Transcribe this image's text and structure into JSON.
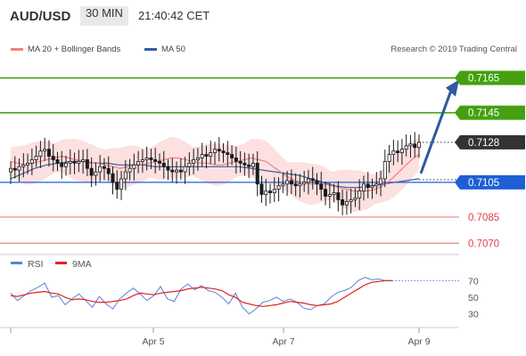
{
  "header": {
    "symbol": "AUD/USD",
    "interval": "30 MIN",
    "time": "21:40:42 CET"
  },
  "legend": [
    {
      "label": "MA 20 + Bollinger Bands",
      "color": "#f08080"
    },
    {
      "label": "MA 50",
      "color": "#3060a0"
    }
  ],
  "copyright": "Research © 2019 Trading Central",
  "rsi_legend": [
    {
      "label": "RSI",
      "color": "#5b7fd6"
    },
    {
      "label": "9MA",
      "color": "#e02020"
    }
  ],
  "colors": {
    "resistance": "#44a010",
    "support": "#f08080",
    "pivot": "#1e5fd6",
    "current": "#333333",
    "candle_up": "#1a1a1a",
    "candle_down": "#1a1a1a",
    "band_fill": "#fde0e0",
    "arrow": "#2d5aa0"
  },
  "chart_data": [
    {
      "type": "candlestick",
      "title": "AUD/USD",
      "x_labels": [
        "Apr 5",
        "Apr 7",
        "Apr 9"
      ],
      "levels": [
        {
          "value": "0.7165",
          "kind": "resistance"
        },
        {
          "value": "0.7145",
          "kind": "resistance"
        },
        {
          "value": "0.7128",
          "kind": "current"
        },
        {
          "value": "0.7105",
          "kind": "pivot"
        },
        {
          "value": "0.7085",
          "kind": "support"
        },
        {
          "value": "0.7070",
          "kind": "support"
        }
      ],
      "ylim": [
        0.7064,
        0.7175
      ],
      "close_series": [
        0.7113,
        0.7112,
        0.7114,
        0.7115,
        0.7116,
        0.7118,
        0.712,
        0.7123,
        0.7124,
        0.712,
        0.7118,
        0.7116,
        0.7114,
        0.7116,
        0.7117,
        0.7116,
        0.7117,
        0.7118,
        0.7113,
        0.7109,
        0.7111,
        0.7114,
        0.7113,
        0.711,
        0.7105,
        0.7101,
        0.7107,
        0.7111,
        0.7113,
        0.7115,
        0.7117,
        0.7118,
        0.7119,
        0.7118,
        0.7117,
        0.7116,
        0.7114,
        0.7112,
        0.7111,
        0.7112,
        0.7111,
        0.7114,
        0.7116,
        0.7118,
        0.7119,
        0.7121,
        0.712,
        0.7122,
        0.7124,
        0.7123,
        0.7122,
        0.7121,
        0.7119,
        0.7117,
        0.7116,
        0.7115,
        0.7114,
        0.7116,
        0.7104,
        0.7098,
        0.71,
        0.7099,
        0.7101,
        0.7103,
        0.7104,
        0.7106,
        0.7104,
        0.7103,
        0.7104,
        0.7105,
        0.7107,
        0.7106,
        0.7104,
        0.7101,
        0.7097,
        0.7098,
        0.7099,
        0.7095,
        0.7092,
        0.7094,
        0.7095,
        0.7096,
        0.71,
        0.7104,
        0.7102,
        0.7103,
        0.7104,
        0.7107,
        0.7117,
        0.7121,
        0.7123,
        0.7122,
        0.7124,
        0.7126,
        0.7127,
        0.7125,
        0.7128
      ],
      "ma20": [
        0.7117,
        0.7116,
        0.7115,
        0.7116,
        0.7117,
        0.7118,
        0.7119,
        0.712,
        0.7119,
        0.7118,
        0.7117,
        0.7116,
        0.7116,
        0.7115,
        0.7114,
        0.7113,
        0.7114,
        0.7115,
        0.7115,
        0.7116,
        0.7117,
        0.7118,
        0.7119,
        0.7119,
        0.7118,
        0.7117,
        0.7116,
        0.7116,
        0.7115,
        0.7115,
        0.7116,
        0.7117,
        0.7118,
        0.7119,
        0.7118,
        0.7117,
        0.7114,
        0.7111,
        0.7108,
        0.7106,
        0.7105,
        0.7104,
        0.7104,
        0.7104,
        0.7103,
        0.7102,
        0.7101,
        0.71,
        0.71,
        0.71,
        0.7101,
        0.7103,
        0.7106,
        0.711,
        0.7114,
        0.7118,
        0.7121
      ],
      "ma50": [
        0.7107,
        0.711,
        0.7113,
        0.7115,
        0.7116,
        0.7117,
        0.7117,
        0.7116,
        0.7116,
        0.7115,
        0.7115,
        0.7115,
        0.7114,
        0.7114,
        0.7114,
        0.7114,
        0.7114,
        0.7114,
        0.7114,
        0.7114,
        0.7113,
        0.7112,
        0.7111,
        0.711,
        0.7109,
        0.7107,
        0.7105,
        0.7103,
        0.7102,
        0.7102,
        0.7103,
        0.7104,
        0.7105,
        0.7106,
        0.7107
      ],
      "forecast_target": 0.7165
    },
    {
      "type": "line",
      "title": "RSI",
      "series": [
        {
          "name": "RSI",
          "values": [
            55,
            46,
            52,
            58,
            62,
            67,
            50,
            52,
            41,
            48,
            54,
            46,
            38,
            51,
            42,
            36,
            48,
            55,
            61,
            54,
            46,
            52,
            63,
            48,
            45,
            60,
            66,
            59,
            64,
            58,
            56,
            50,
            42,
            55,
            38,
            30,
            36,
            44,
            46,
            50,
            45,
            48,
            44,
            37,
            35,
            40,
            42,
            50,
            56,
            58,
            62,
            70,
            74,
            71,
            72,
            70,
            70
          ]
        },
        {
          "name": "9MA",
          "values": [
            52,
            51,
            53,
            55,
            56,
            57,
            55,
            54,
            50,
            47,
            48,
            47,
            45,
            44,
            44,
            45,
            46,
            48,
            52,
            55,
            54,
            53,
            55,
            56,
            57,
            58,
            60,
            61,
            62,
            61,
            60,
            58,
            53,
            50,
            44,
            42,
            40,
            39,
            40,
            41,
            43,
            45,
            44,
            43,
            41,
            40,
            41,
            42,
            45,
            50,
            55,
            60,
            65,
            68,
            69,
            70,
            70
          ]
        }
      ],
      "y_ticks": [
        "70",
        "50",
        "30"
      ],
      "ylim": [
        20,
        80
      ]
    }
  ]
}
